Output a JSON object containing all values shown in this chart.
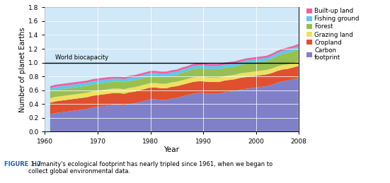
{
  "years": [
    1961,
    1962,
    1963,
    1964,
    1965,
    1966,
    1967,
    1968,
    1969,
    1970,
    1971,
    1972,
    1973,
    1974,
    1975,
    1976,
    1977,
    1978,
    1979,
    1980,
    1981,
    1982,
    1983,
    1984,
    1985,
    1986,
    1987,
    1988,
    1989,
    1990,
    1991,
    1992,
    1993,
    1994,
    1995,
    1996,
    1997,
    1998,
    1999,
    2000,
    2001,
    2002,
    2003,
    2004,
    2005,
    2006,
    2007,
    2008
  ],
  "carbon_footprint": [
    0.25,
    0.27,
    0.28,
    0.29,
    0.3,
    0.31,
    0.32,
    0.33,
    0.35,
    0.36,
    0.37,
    0.38,
    0.39,
    0.39,
    0.38,
    0.4,
    0.41,
    0.43,
    0.45,
    0.47,
    0.47,
    0.46,
    0.46,
    0.48,
    0.49,
    0.51,
    0.53,
    0.55,
    0.56,
    0.56,
    0.55,
    0.55,
    0.55,
    0.57,
    0.58,
    0.59,
    0.61,
    0.62,
    0.63,
    0.64,
    0.65,
    0.66,
    0.68,
    0.71,
    0.73,
    0.74,
    0.76,
    0.78
  ],
  "cropland": [
    0.17,
    0.17,
    0.17,
    0.17,
    0.17,
    0.17,
    0.17,
    0.17,
    0.17,
    0.17,
    0.17,
    0.17,
    0.17,
    0.17,
    0.17,
    0.17,
    0.17,
    0.17,
    0.17,
    0.17,
    0.17,
    0.17,
    0.17,
    0.17,
    0.17,
    0.17,
    0.17,
    0.17,
    0.17,
    0.17,
    0.17,
    0.17,
    0.17,
    0.17,
    0.17,
    0.17,
    0.17,
    0.17,
    0.17,
    0.17,
    0.17,
    0.17,
    0.17,
    0.17,
    0.17,
    0.17,
    0.17,
    0.17
  ],
  "grazing_land": [
    0.065,
    0.065,
    0.065,
    0.065,
    0.065,
    0.065,
    0.065,
    0.065,
    0.065,
    0.065,
    0.065,
    0.065,
    0.065,
    0.065,
    0.065,
    0.065,
    0.065,
    0.065,
    0.065,
    0.065,
    0.065,
    0.065,
    0.065,
    0.065,
    0.065,
    0.065,
    0.065,
    0.065,
    0.065,
    0.065,
    0.065,
    0.065,
    0.065,
    0.065,
    0.065,
    0.065,
    0.065,
    0.065,
    0.065,
    0.065,
    0.065,
    0.065,
    0.065,
    0.065,
    0.065,
    0.065,
    0.065,
    0.065
  ],
  "forest": [
    0.1,
    0.1,
    0.1,
    0.1,
    0.1,
    0.1,
    0.1,
    0.1,
    0.1,
    0.1,
    0.1,
    0.1,
    0.1,
    0.1,
    0.1,
    0.1,
    0.1,
    0.1,
    0.1,
    0.1,
    0.1,
    0.1,
    0.1,
    0.1,
    0.1,
    0.11,
    0.11,
    0.12,
    0.12,
    0.12,
    0.12,
    0.12,
    0.12,
    0.12,
    0.12,
    0.12,
    0.12,
    0.13,
    0.13,
    0.13,
    0.13,
    0.13,
    0.14,
    0.15,
    0.16,
    0.17,
    0.17,
    0.18
  ],
  "fishing_ground": [
    0.045,
    0.045,
    0.045,
    0.045,
    0.045,
    0.045,
    0.045,
    0.045,
    0.045,
    0.045,
    0.045,
    0.045,
    0.045,
    0.045,
    0.045,
    0.045,
    0.045,
    0.045,
    0.045,
    0.045,
    0.045,
    0.045,
    0.045,
    0.045,
    0.045,
    0.045,
    0.045,
    0.045,
    0.045,
    0.045,
    0.045,
    0.045,
    0.045,
    0.045,
    0.045,
    0.045,
    0.045,
    0.045,
    0.045,
    0.045,
    0.045,
    0.045,
    0.045,
    0.045,
    0.045,
    0.045,
    0.045,
    0.045
  ],
  "builtup_land": [
    0.03,
    0.03,
    0.03,
    0.03,
    0.03,
    0.03,
    0.03,
    0.03,
    0.03,
    0.03,
    0.03,
    0.03,
    0.03,
    0.03,
    0.03,
    0.03,
    0.03,
    0.03,
    0.03,
    0.03,
    0.03,
    0.03,
    0.03,
    0.03,
    0.03,
    0.03,
    0.03,
    0.03,
    0.03,
    0.03,
    0.03,
    0.03,
    0.03,
    0.03,
    0.03,
    0.03,
    0.03,
    0.03,
    0.03,
    0.03,
    0.03,
    0.03,
    0.03,
    0.03,
    0.03,
    0.03,
    0.03,
    0.03
  ],
  "colors": {
    "carbon_footprint": "#8080c8",
    "cropland": "#e05030",
    "grazing_land": "#f0e060",
    "forest": "#98c050",
    "fishing_ground": "#60c8e8",
    "builtup_land": "#f060a0"
  },
  "bg_color": "#d0e8f8",
  "biocapacity_line": 1.0,
  "biocapacity_label": "World biocapacity",
  "xlabel": "Year",
  "ylabel": "Number of planet Earths",
  "ylim": [
    0,
    1.8
  ],
  "yticks": [
    0,
    0.2,
    0.4,
    0.6,
    0.8,
    1.0,
    1.2,
    1.4,
    1.6,
    1.8
  ],
  "xticks": [
    1960,
    1970,
    1980,
    1990,
    2000,
    2008
  ],
  "caption_bold": "FIGURE 1.7",
  "caption_rest": "  Humanity's ecological footprint has nearly tripled since 1961, when we began to\ncollect global environmental data.",
  "legend_labels": [
    "Built-up land",
    "Fishing ground",
    "Forest",
    "Grazing land",
    "Cropland",
    "Carbon\nfootprint"
  ],
  "legend_colors": [
    "#f060a0",
    "#60c8e8",
    "#98c050",
    "#f0e060",
    "#e05030",
    "#8080c8"
  ]
}
